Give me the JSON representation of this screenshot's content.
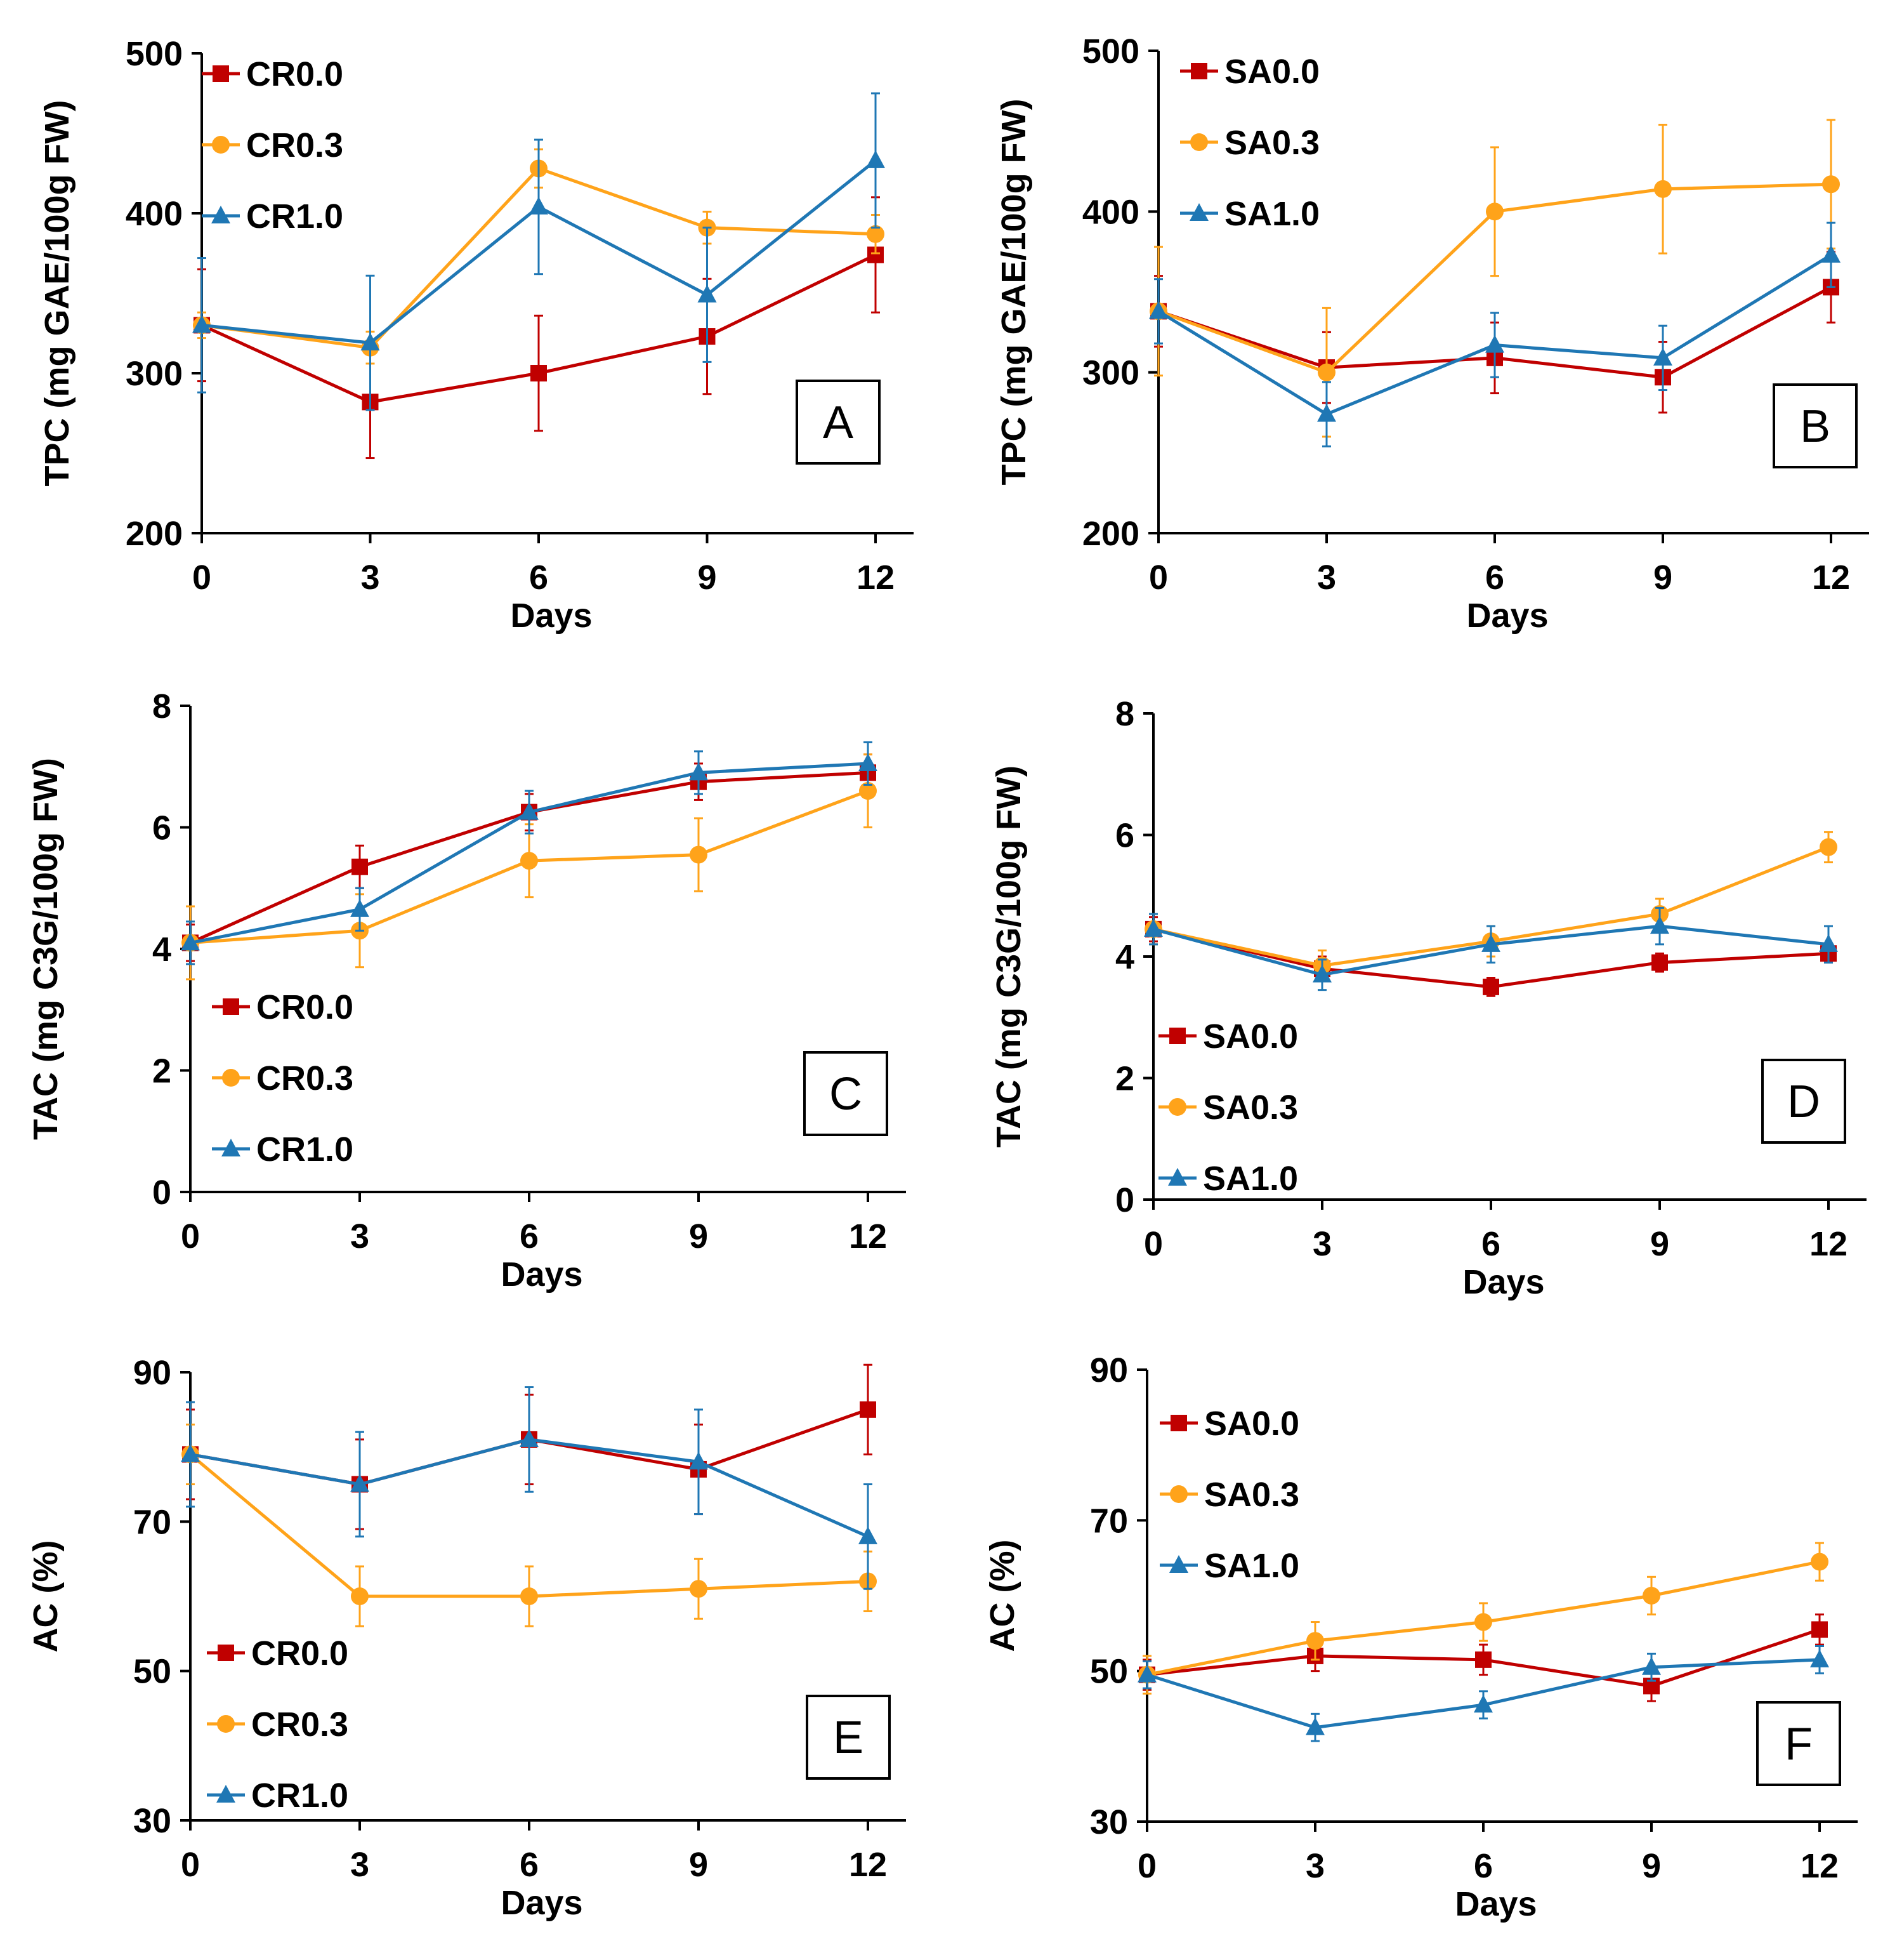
{
  "colors": {
    "series0": "#C00000",
    "series1": "#FFA31A",
    "series2": "#1F77B4"
  },
  "chart_data": [
    {
      "panel": "A",
      "type": "line",
      "xlabel": "Days",
      "ylabel": "TPC (mg GAE/100g FW)",
      "x": [
        0,
        3,
        6,
        9,
        12
      ],
      "xticks": [
        "0",
        "3",
        "6",
        "9",
        "12"
      ],
      "ylim": [
        200,
        500
      ],
      "yticks": [
        200,
        300,
        400,
        500
      ],
      "legend_position": "top-left",
      "series": [
        {
          "name": "CR0.0",
          "marker": "square",
          "values": [
            330,
            282,
            300,
            323,
            374
          ],
          "errors": [
            35,
            35,
            36,
            36,
            36
          ]
        },
        {
          "name": "CR0.3",
          "marker": "circle",
          "values": [
            330,
            316,
            428,
            391,
            387
          ],
          "errors": [
            8,
            10,
            12,
            10,
            12
          ]
        },
        {
          "name": "CR1.0",
          "marker": "triangle",
          "values": [
            330,
            319,
            404,
            349,
            433
          ],
          "errors": [
            42,
            42,
            42,
            42,
            42
          ]
        }
      ]
    },
    {
      "panel": "B",
      "type": "line",
      "xlabel": "Days",
      "ylabel": "TPC (mg GAE/100g FW)",
      "x": [
        0,
        3,
        6,
        9,
        12
      ],
      "xticks": [
        "0",
        "3",
        "6",
        "9",
        "12"
      ],
      "ylim": [
        200,
        500
      ],
      "yticks": [
        200,
        300,
        400,
        500
      ],
      "legend_position": "top-left",
      "series": [
        {
          "name": "SA0.0",
          "marker": "square",
          "values": [
            338,
            303,
            309,
            297,
            353
          ],
          "errors": [
            22,
            22,
            22,
            22,
            22
          ]
        },
        {
          "name": "SA0.3",
          "marker": "circle",
          "values": [
            338,
            300,
            400,
            414,
            417
          ],
          "errors": [
            40,
            40,
            40,
            40,
            40
          ]
        },
        {
          "name": "SA1.0",
          "marker": "triangle",
          "values": [
            338,
            274,
            317,
            309,
            373
          ],
          "errors": [
            20,
            20,
            20,
            20,
            20
          ]
        }
      ]
    },
    {
      "panel": "C",
      "type": "line",
      "xlabel": "Days",
      "ylabel": "TAC (mg C3G/100g FW)",
      "x": [
        0,
        3,
        6,
        9,
        12
      ],
      "xticks": [
        "0",
        "3",
        "6",
        "9",
        "12"
      ],
      "ylim": [
        0,
        8
      ],
      "yticks": [
        0,
        2,
        4,
        6,
        8
      ],
      "legend_position": "bottom-left",
      "series": [
        {
          "name": "CR0.0",
          "marker": "square",
          "values": [
            4.1,
            5.35,
            6.25,
            6.75,
            6.9
          ],
          "errors": [
            0.3,
            0.35,
            0.3,
            0.3,
            0.3
          ]
        },
        {
          "name": "CR0.3",
          "marker": "circle",
          "values": [
            4.1,
            4.3,
            5.45,
            5.55,
            6.6
          ],
          "errors": [
            0.6,
            0.6,
            0.6,
            0.6,
            0.6
          ]
        },
        {
          "name": "CR1.0",
          "marker": "triangle",
          "values": [
            4.1,
            4.65,
            6.25,
            6.9,
            7.05
          ],
          "errors": [
            0.35,
            0.35,
            0.35,
            0.35,
            0.35
          ]
        }
      ]
    },
    {
      "panel": "D",
      "type": "line",
      "xlabel": "Days",
      "ylabel": "TAC (mg C3G/100g FW)",
      "x": [
        0,
        3,
        6,
        9,
        12
      ],
      "xticks": [
        "0",
        "3",
        "6",
        "9",
        "12"
      ],
      "ylim": [
        0,
        8
      ],
      "yticks": [
        0,
        2,
        4,
        6,
        8
      ],
      "legend_position": "bottom-left",
      "series": [
        {
          "name": "SA0.0",
          "marker": "square",
          "values": [
            4.45,
            3.8,
            3.5,
            3.9,
            4.05
          ],
          "errors": [
            0.2,
            0.2,
            0.15,
            0.15,
            0.15
          ]
        },
        {
          "name": "SA0.3",
          "marker": "circle",
          "values": [
            4.45,
            3.85,
            4.25,
            4.7,
            5.8
          ],
          "errors": [
            0.25,
            0.25,
            0.25,
            0.25,
            0.25
          ]
        },
        {
          "name": "SA1.0",
          "marker": "triangle",
          "values": [
            4.45,
            3.7,
            4.2,
            4.5,
            4.2
          ],
          "errors": [
            0.25,
            0.25,
            0.3,
            0.3,
            0.3
          ]
        }
      ]
    },
    {
      "panel": "E",
      "type": "line",
      "xlabel": "Days",
      "ylabel": "AC (%)",
      "x": [
        0,
        3,
        6,
        9,
        12
      ],
      "xticks": [
        "0",
        "3",
        "6",
        "9",
        "12"
      ],
      "ylim": [
        30,
        90
      ],
      "yticks": [
        30,
        50,
        70,
        90
      ],
      "legend_position": "bottom-left",
      "series": [
        {
          "name": "CR0.0",
          "marker": "square",
          "values": [
            79,
            75,
            81,
            77,
            85
          ],
          "errors": [
            6,
            6,
            6,
            6,
            6
          ]
        },
        {
          "name": "CR0.3",
          "marker": "circle",
          "values": [
            79,
            60,
            60,
            61,
            62
          ],
          "errors": [
            4,
            4,
            4,
            4,
            4
          ]
        },
        {
          "name": "CR1.0",
          "marker": "triangle",
          "values": [
            79,
            75,
            81,
            78,
            68
          ],
          "errors": [
            7,
            7,
            7,
            7,
            7
          ]
        }
      ]
    },
    {
      "panel": "F",
      "type": "line",
      "xlabel": "Days",
      "ylabel": "AC (%)",
      "x": [
        0,
        3,
        6,
        9,
        12
      ],
      "xticks": [
        "0",
        "3",
        "6",
        "9",
        "12"
      ],
      "ylim": [
        30,
        90
      ],
      "yticks": [
        30,
        50,
        70,
        90
      ],
      "legend_position": "top-left",
      "series": [
        {
          "name": "SA0.0",
          "marker": "square",
          "values": [
            49.5,
            52,
            51.5,
            48,
            55.5
          ],
          "errors": [
            2,
            2,
            2,
            2,
            2
          ]
        },
        {
          "name": "SA0.3",
          "marker": "circle",
          "values": [
            49.5,
            54,
            56.5,
            60,
            64.5
          ],
          "errors": [
            2.5,
            2.5,
            2.5,
            2.5,
            2.5
          ]
        },
        {
          "name": "SA1.0",
          "marker": "triangle",
          "values": [
            49.5,
            42.5,
            45.5,
            50.5,
            51.5
          ],
          "errors": [
            1.8,
            1.8,
            1.8,
            1.8,
            1.8
          ]
        }
      ]
    }
  ]
}
